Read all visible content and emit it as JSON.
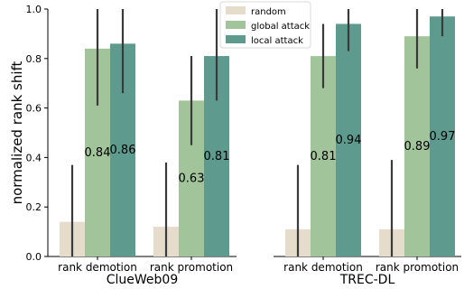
{
  "chart_data": {
    "type": "bar",
    "ylabel": "normalized rank shift",
    "ylim": [
      0,
      1.0
    ],
    "yticks": [
      "0.0",
      "0.2",
      "0.4",
      "0.6",
      "0.8",
      "1.0"
    ],
    "ytick_values": [
      0,
      0.2,
      0.4,
      0.6,
      0.8,
      1.0
    ],
    "legend": {
      "position": "top-center",
      "entries": [
        {
          "name": "random",
          "color": "#e6dccb"
        },
        {
          "name": "global attack",
          "color": "#a2c49a"
        },
        {
          "name": "local attack",
          "color": "#5e9b8e"
        }
      ]
    },
    "panels": [
      {
        "title": "ClueWeb09",
        "categories": [
          "rank demotion",
          "rank promotion"
        ],
        "series": [
          {
            "name": "random",
            "values": [
              0.14,
              0.12
            ],
            "err_low": [
              0,
              0
            ],
            "err_high": [
              0.37,
              0.38
            ],
            "labels": [
              "",
              ""
            ]
          },
          {
            "name": "global attack",
            "values": [
              0.84,
              0.63
            ],
            "err_low": [
              0.61,
              0.45
            ],
            "err_high": [
              1.0,
              0.81
            ],
            "labels": [
              "0.84",
              "0.63"
            ]
          },
          {
            "name": "local attack",
            "values": [
              0.86,
              0.81
            ],
            "err_low": [
              0.66,
              0.63
            ],
            "err_high": [
              1.0,
              1.0
            ],
            "labels": [
              "0.86",
              "0.81"
            ]
          }
        ]
      },
      {
        "title": "TREC-DL",
        "categories": [
          "rank demotion",
          "rank promotion"
        ],
        "series": [
          {
            "name": "random",
            "values": [
              0.11,
              0.11
            ],
            "err_low": [
              0,
              0
            ],
            "err_high": [
              0.37,
              0.39
            ],
            "labels": [
              "",
              ""
            ]
          },
          {
            "name": "global attack",
            "values": [
              0.81,
              0.89
            ],
            "err_low": [
              0.68,
              0.76
            ],
            "err_high": [
              0.94,
              1.0
            ],
            "labels": [
              "0.81",
              "0.89"
            ]
          },
          {
            "name": "local attack",
            "values": [
              0.94,
              0.97
            ],
            "err_low": [
              0.83,
              0.89
            ],
            "err_high": [
              1.0,
              1.0
            ],
            "labels": [
              "0.94",
              "0.97"
            ]
          }
        ]
      }
    ]
  }
}
